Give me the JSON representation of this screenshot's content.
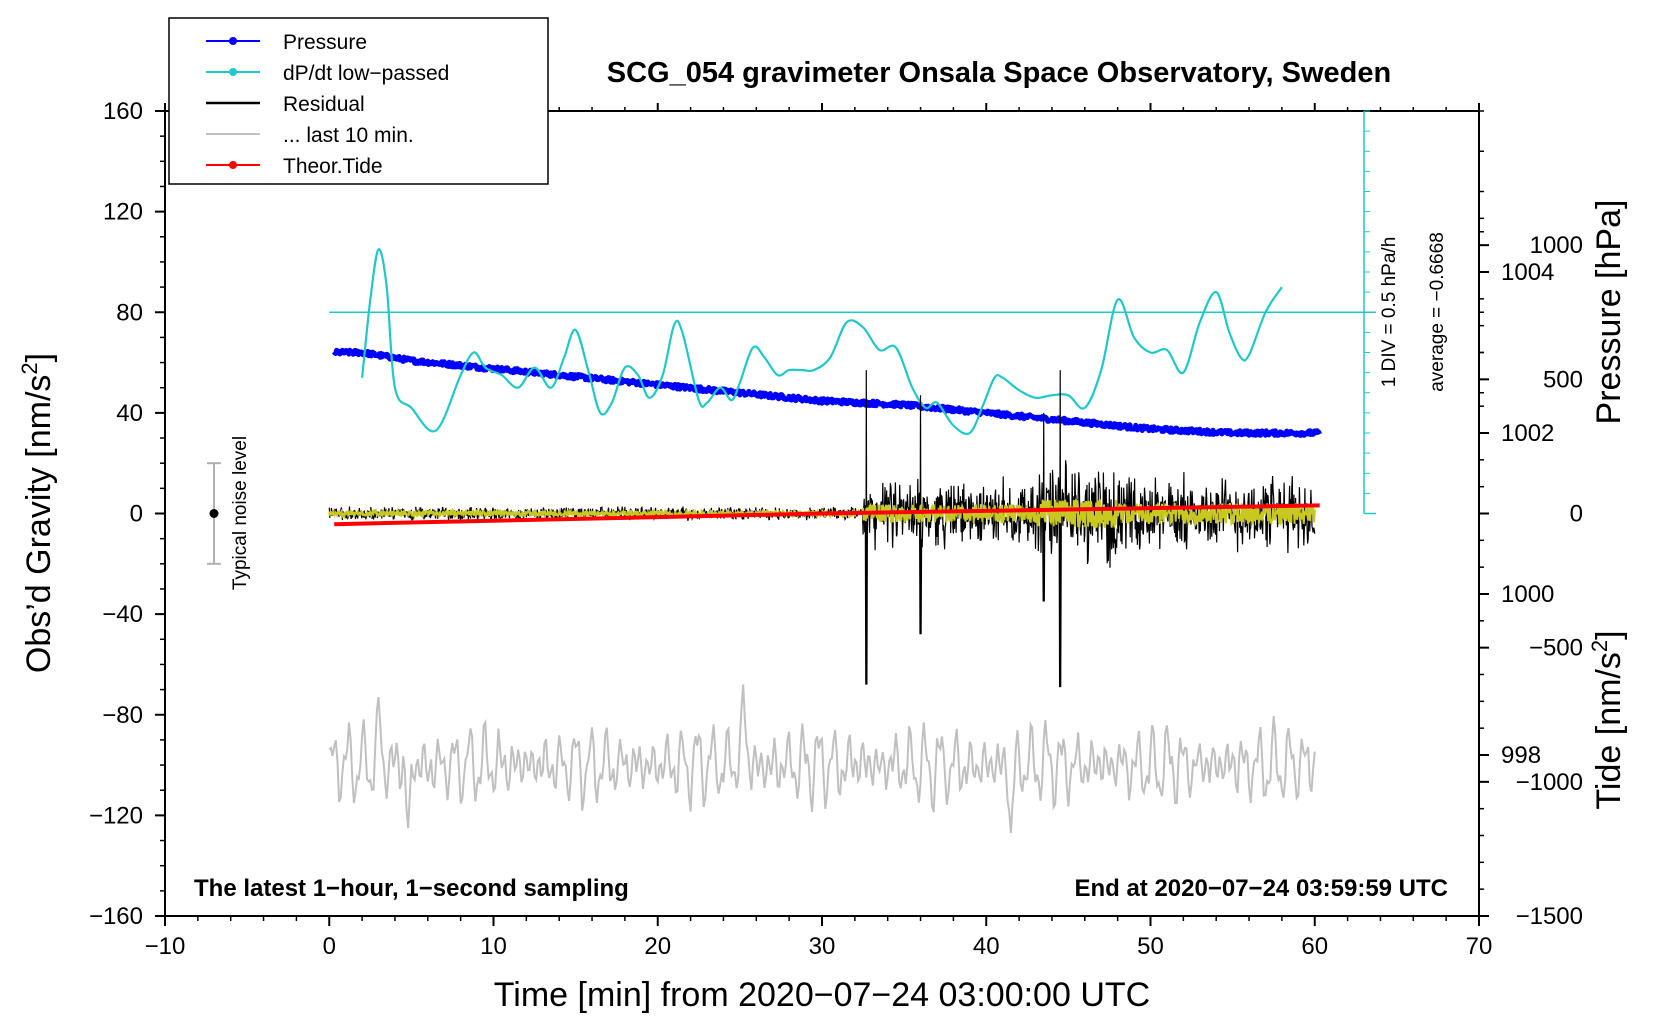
{
  "chart_data": {
    "type": "line",
    "title": "SCG_054 gravimeter Onsala Space Observatory, Sweden",
    "xlabel": "Time [min] from 2020−07−24 03:00:00 UTC",
    "ylabel_left": "Obs’d Gravity [nm/s",
    "ylabel_left_sup": "2",
    "ylabel_left_close": "]",
    "ylabel_pressure": "Pressure [hPa]",
    "ylabel_tide": "Tide [nm/s",
    "ylabel_tide_sup": "2",
    "ylabel_tide_close": "]",
    "xlim": [
      -10,
      70
    ],
    "ylim": [
      -160,
      160
    ],
    "x_ticks": [
      "−10",
      "0",
      "10",
      "20",
      "30",
      "40",
      "50",
      "60",
      "70"
    ],
    "y_ticks": [
      "160",
      "120",
      "80",
      "40",
      "0",
      "−40",
      "−80",
      "−120",
      "−160"
    ],
    "pressure_axis": {
      "range": [
        996,
        1006
      ],
      "ticks": [
        "1004",
        "1002",
        "1000",
        "998"
      ]
    },
    "tide_axis": {
      "range": [
        -1500,
        1500
      ],
      "ticks": [
        "1000",
        "500",
        "0",
        "−500",
        "−1000",
        "−1500"
      ]
    },
    "note_left": "The latest 1−hour, 1−second sampling",
    "note_right": "End at 2020−07−24 03:59:59 UTC",
    "noise_label": "Typical noise level",
    "noise_range": [
      -20,
      20
    ],
    "dpdt_scale_label": "1 DIV = 0.5 hPa/h",
    "dpdt_average_label": "average = −0.6668",
    "legend": [
      {
        "label": "Pressure",
        "color": "#0000ff",
        "marker": true
      },
      {
        "label": "dP/dt low−passed",
        "color": "#20c8c8",
        "marker": true
      },
      {
        "label": "Residual",
        "color": "#000000",
        "marker": false
      },
      {
        "label": "... last 10 min.",
        "color": "#c0c0c0",
        "marker": false
      },
      {
        "label": "Theor.Tide",
        "color": "#ff0000",
        "marker": true
      }
    ],
    "series": [
      {
        "name": "Pressure",
        "color": "#0000ff",
        "units": "hPa",
        "x": [
          0.3,
          2,
          5,
          10,
          15,
          20,
          25,
          30,
          35,
          40,
          45,
          50,
          55,
          60.3
        ],
        "y": [
          1003.0,
          1003.0,
          1002.9,
          1002.8,
          1002.7,
          1002.6,
          1002.5,
          1002.4,
          1002.35,
          1002.25,
          1002.15,
          1002.05,
          1002.0,
          1002.0
        ]
      },
      {
        "name": "dP/dt low-passed",
        "color": "#20c8c8",
        "units": "nm/s2-equivalent",
        "x": [
          2.0,
          2.5,
          3.0,
          3.5,
          4.0,
          5.0,
          6.5,
          8.0,
          8.8,
          9.5,
          10.5,
          11.5,
          12.5,
          13.5,
          14.3,
          15.0,
          15.8,
          16.5,
          17.2,
          18.0,
          18.8,
          19.5,
          20.3,
          21.0,
          21.5,
          22.5,
          23.0,
          23.8,
          24.5,
          25.0,
          25.8,
          26.5,
          27.3,
          28.0,
          28.8,
          29.5,
          30.5,
          31.5,
          32.5,
          33.5,
          34.5,
          35.5,
          36.3,
          37.0,
          38.0,
          39.0,
          39.8,
          40.5,
          41.0,
          42.0,
          43.0,
          44.0,
          45.0,
          46.0,
          47.0,
          48.0,
          49.0,
          50.0,
          51.0,
          52.0,
          53.0,
          54.0,
          54.8,
          55.5,
          56.0,
          57.0,
          58.0
        ],
        "y": [
          54,
          85,
          105,
          90,
          50,
          42,
          33,
          55,
          64,
          58,
          55,
          50,
          58,
          50,
          62,
          73,
          56,
          40,
          44,
          58,
          55,
          46,
          55,
          75,
          72,
          45,
          44,
          50,
          45,
          52,
          66,
          62,
          55,
          57,
          57,
          57,
          62,
          76,
          74,
          65,
          66,
          50,
          42,
          44,
          35,
          32,
          43,
          54,
          54,
          49,
          46,
          47,
          47,
          42,
          57,
          85,
          70,
          64,
          65,
          56,
          76,
          88,
          72,
          62,
          63,
          80,
          90
        ]
      },
      {
        "name": "Residual",
        "color": "#000000",
        "units": "nm/s2",
        "x_range": [
          0,
          60
        ],
        "amplitude_quiet": 3,
        "amplitude_active": 20,
        "spikes": [
          {
            "x": 32.7,
            "high": 57,
            "low": -68
          },
          {
            "x": 36.0,
            "high": 47,
            "low": -48
          },
          {
            "x": 44.5,
            "high": 57,
            "low": -69
          },
          {
            "x": 43.5,
            "high": 40,
            "low": -35
          }
        ]
      },
      {
        "name": "... last 10 min.",
        "color": "#c0c0c0",
        "units": "nm/s2",
        "x_range": [
          0,
          60
        ],
        "center": -100,
        "amplitude": 15,
        "extremes": [
          {
            "x": 3.0,
            "y": -73
          },
          {
            "x": 25.2,
            "y": -68
          },
          {
            "x": 41.5,
            "y": -127
          },
          {
            "x": 4.8,
            "y": -125
          }
        ]
      },
      {
        "name": "Theor.Tide",
        "color": "#ff0000",
        "units": "nm/s2 (tide axis)",
        "x": [
          0.3,
          30,
          60.3
        ],
        "y": [
          -40,
          0,
          30
        ]
      }
    ]
  }
}
